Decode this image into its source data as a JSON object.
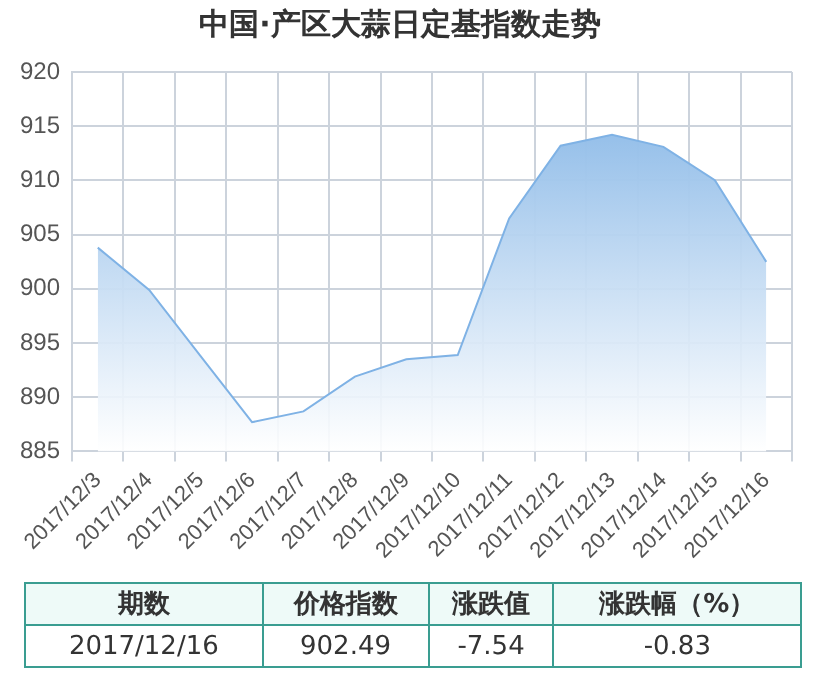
{
  "chart_data": {
    "type": "area",
    "title": "中国·产区大蒜日定基指数走势",
    "categories": [
      "2017/12/3",
      "2017/12/4",
      "2017/12/5",
      "2017/12/6",
      "2017/12/7",
      "2017/12/8",
      "2017/12/9",
      "2017/12/10",
      "2017/12/11",
      "2017/12/12",
      "2017/12/13",
      "2017/12/14",
      "2017/12/15",
      "2017/12/16"
    ],
    "values": [
      903.8,
      899.9,
      893.8,
      887.7,
      888.7,
      891.9,
      893.5,
      893.9,
      906.5,
      913.2,
      914.2,
      913.1,
      910.03,
      902.49
    ],
    "color": "#7fb2e5",
    "ylim": [
      885,
      920
    ],
    "yticks": [
      885,
      890,
      895,
      900,
      905,
      910,
      915,
      920
    ],
    "grid": true,
    "marker": "none",
    "annotations": [
      "期数",
      "价格指数",
      "涨跌值",
      "涨跌幅（%）",
      "2017/12/16",
      "902.49",
      "-7.54",
      "-0.83"
    ]
  }
}
